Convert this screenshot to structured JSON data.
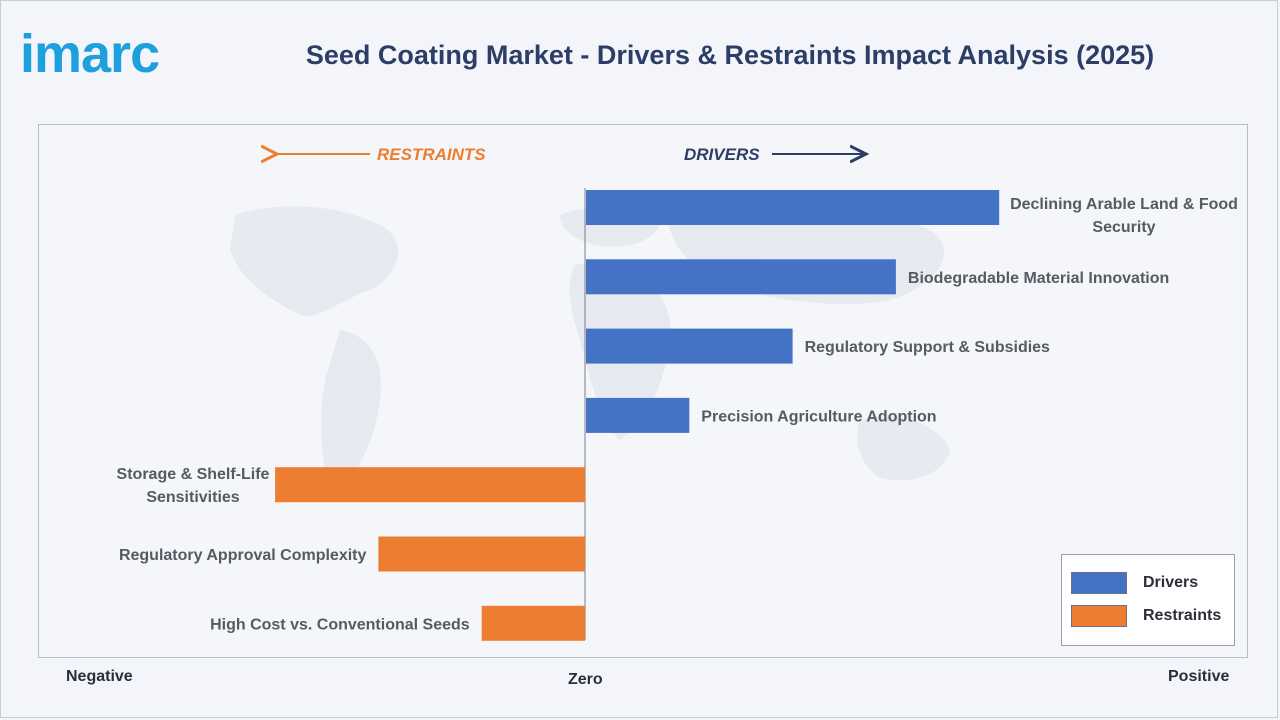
{
  "brand": {
    "logo_text": "imarc",
    "logo_color": "#1ea0dc"
  },
  "header": {
    "title": "Seed Coating Market - Drivers & Restraints Impact Analysis (2025)"
  },
  "direction": {
    "restraints_label": "RESTRAINTS",
    "drivers_label": "DRIVERS"
  },
  "axis": {
    "negative": "Negative",
    "zero": "Zero",
    "positive": "Positive"
  },
  "legend": {
    "drivers": {
      "label": "Drivers",
      "color": "#4472c4"
    },
    "restraints": {
      "label": "Restraints",
      "color": "#ed7d31"
    }
  },
  "colors": {
    "title": "#2c3e66",
    "restraints": "#ed7d31",
    "drivers": "#2c3e66"
  },
  "chart_data": {
    "type": "bar",
    "orientation": "horizontal",
    "title": "Seed Coating Market - Drivers & Restraints Impact Analysis (2025)",
    "xlim": [
      -3,
      4
    ],
    "grid": false,
    "legend_position": "bottom-right",
    "categories": [
      "Declining Arable Land & Food Security",
      "Biodegradable Material Innovation",
      "Regulatory Support & Subsidies",
      "Precision Agriculture Adoption",
      "Storage & Shelf-Life Sensitivities",
      "Regulatory Approval Complexity",
      "High Cost vs. Conventional Seeds"
    ],
    "values": [
      4,
      3,
      2,
      1,
      -3,
      -2,
      -1
    ],
    "series_types": [
      "Drivers",
      "Drivers",
      "Drivers",
      "Drivers",
      "Restraints",
      "Restraints",
      "Restraints"
    ]
  }
}
